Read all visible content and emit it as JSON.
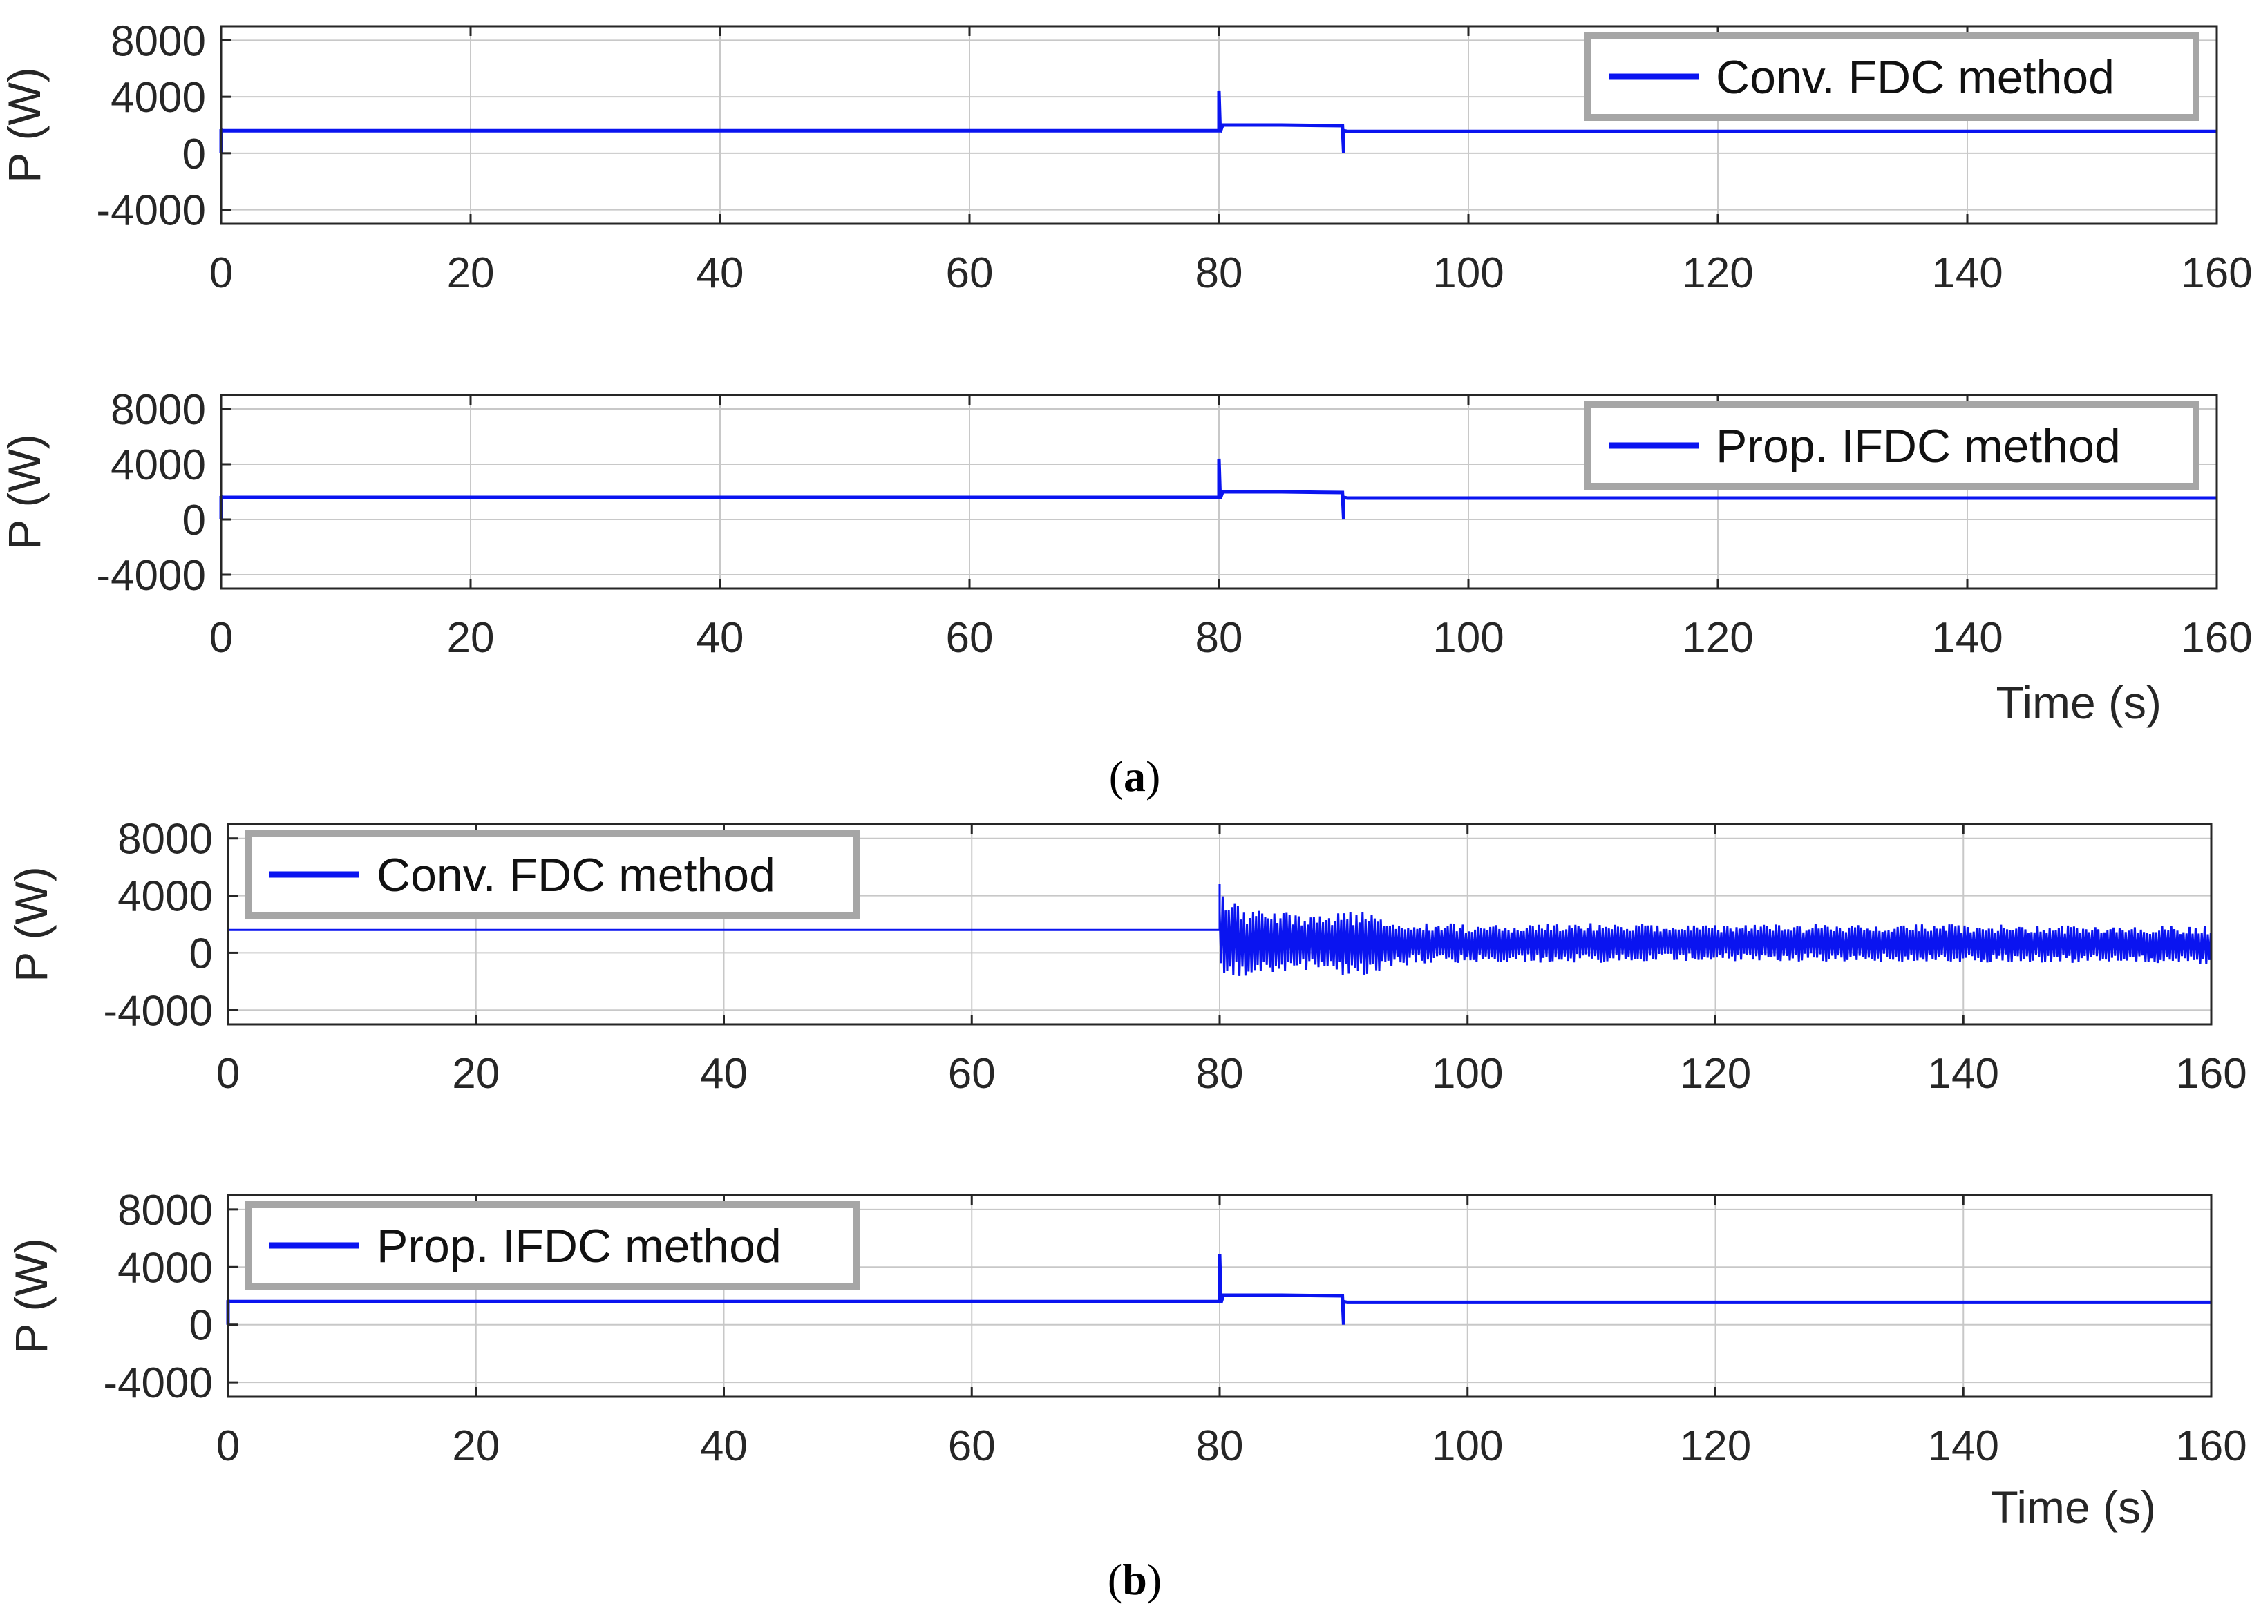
{
  "figure": {
    "caption_a": "a",
    "caption_b": "b"
  },
  "colors": {
    "series": "#0a14f0",
    "grid": "#c8c8c8",
    "axis": "#262626",
    "legend_border": "#a6a6a6"
  },
  "chart_data": [
    {
      "id": "a-top",
      "type": "line",
      "panel": "a",
      "ylabel": "P (W)",
      "xlabel": "",
      "xlim": [
        0,
        160
      ],
      "ylim": [
        -5000,
        9000
      ],
      "xticks": [
        0,
        20,
        40,
        60,
        80,
        100,
        120,
        140,
        160
      ],
      "yticks": [
        8000,
        4000,
        0,
        -4000
      ],
      "xtick_labels": [
        "0",
        "20",
        "40",
        "60",
        "80",
        "100",
        "120",
        "140",
        "160"
      ],
      "ytick_labels": [
        "8000",
        "4000",
        "0",
        "-4000"
      ],
      "grid": true,
      "legend": {
        "label": "Conv. FDC method",
        "position": "top-right"
      },
      "series": [
        {
          "name": "Conv. FDC method",
          "x": [
            0,
            0,
            0.05,
            80,
            80,
            80.1,
            80.3,
            85,
            89.9,
            90,
            90,
            90.3,
            160
          ],
          "y": [
            0,
            1700,
            1600,
            1600,
            4400,
            1500,
            2000,
            2000,
            1950,
            0,
            1600,
            1550,
            1550
          ]
        }
      ]
    },
    {
      "id": "a-bottom",
      "type": "line",
      "panel": "a",
      "ylabel": "P (W)",
      "xlabel": "Time (s)",
      "xlim": [
        0,
        160
      ],
      "ylim": [
        -5000,
        9000
      ],
      "xticks": [
        0,
        20,
        40,
        60,
        80,
        100,
        120,
        140,
        160
      ],
      "yticks": [
        8000,
        4000,
        0,
        -4000
      ],
      "xtick_labels": [
        "0",
        "20",
        "40",
        "60",
        "80",
        "100",
        "120",
        "140",
        "160"
      ],
      "ytick_labels": [
        "8000",
        "4000",
        "0",
        "-4000"
      ],
      "grid": true,
      "legend": {
        "label": "Prop. IFDC method",
        "position": "top-right"
      },
      "series": [
        {
          "name": "Prop. IFDC method",
          "x": [
            0,
            0,
            0.05,
            80,
            80,
            80.1,
            80.3,
            85,
            89.9,
            90,
            90,
            90.3,
            160
          ],
          "y": [
            0,
            1700,
            1600,
            1600,
            4400,
            1500,
            2000,
            2000,
            1950,
            0,
            1600,
            1550,
            1550
          ]
        }
      ]
    },
    {
      "id": "b-top",
      "type": "line",
      "panel": "b",
      "ylabel": "P (W)",
      "xlabel": "",
      "xlim": [
        0,
        160
      ],
      "ylim": [
        -5000,
        9000
      ],
      "xticks": [
        0,
        20,
        40,
        60,
        80,
        100,
        120,
        140,
        160
      ],
      "yticks": [
        8000,
        4000,
        0,
        -4000
      ],
      "xtick_labels": [
        "0",
        "20",
        "40",
        "60",
        "80",
        "100",
        "120",
        "140",
        "160"
      ],
      "ytick_labels": [
        "8000",
        "4000",
        "0",
        "-4000"
      ],
      "grid": true,
      "legend": {
        "label": "Conv. FDC method",
        "position": "top-left"
      },
      "series": [
        {
          "name": "Conv. FDC method",
          "x": [
            0,
            0,
            0.05,
            80,
            80
          ],
          "y": [
            0,
            1700,
            1600,
            1600,
            4800
          ],
          "oscillation": {
            "start": 80,
            "end": 160,
            "envelope_x": [
              80,
              82,
              85,
              88,
              90,
              92,
              94,
              96,
              100,
              110,
              120,
              130,
              140,
              150,
              160
            ],
            "upper": [
              4200,
              3100,
              3000,
              2700,
              3000,
              2800,
              2300,
              2200,
              2000,
              2100,
              2000,
              2000,
              2000,
              1900,
              1900
            ],
            "lower": [
              -1800,
              -1600,
              -1500,
              -1300,
              -1700,
              -1500,
              -1000,
              -800,
              -700,
              -700,
              -600,
              -600,
              -700,
              -700,
              -800
            ]
          }
        }
      ]
    },
    {
      "id": "b-bottom",
      "type": "line",
      "panel": "b",
      "ylabel": "P (W)",
      "xlabel": "Time (s)",
      "xlim": [
        0,
        160
      ],
      "ylim": [
        -5000,
        9000
      ],
      "xticks": [
        0,
        20,
        40,
        60,
        80,
        100,
        120,
        140,
        160
      ],
      "yticks": [
        8000,
        4000,
        0,
        -4000
      ],
      "xtick_labels": [
        "0",
        "20",
        "40",
        "60",
        "80",
        "100",
        "120",
        "140",
        "160"
      ],
      "ytick_labels": [
        "8000",
        "4000",
        "0",
        "-4000"
      ],
      "grid": true,
      "legend": {
        "label": "Prop. IFDC method",
        "position": "top-left"
      },
      "series": [
        {
          "name": "Prop. IFDC method",
          "x": [
            0,
            0,
            0.05,
            80,
            80,
            80.1,
            80.3,
            85,
            89.9,
            90,
            90,
            90.3,
            160
          ],
          "y": [
            0,
            1700,
            1600,
            1600,
            4900,
            1500,
            2050,
            2050,
            2000,
            0,
            1600,
            1550,
            1550
          ]
        }
      ]
    }
  ]
}
